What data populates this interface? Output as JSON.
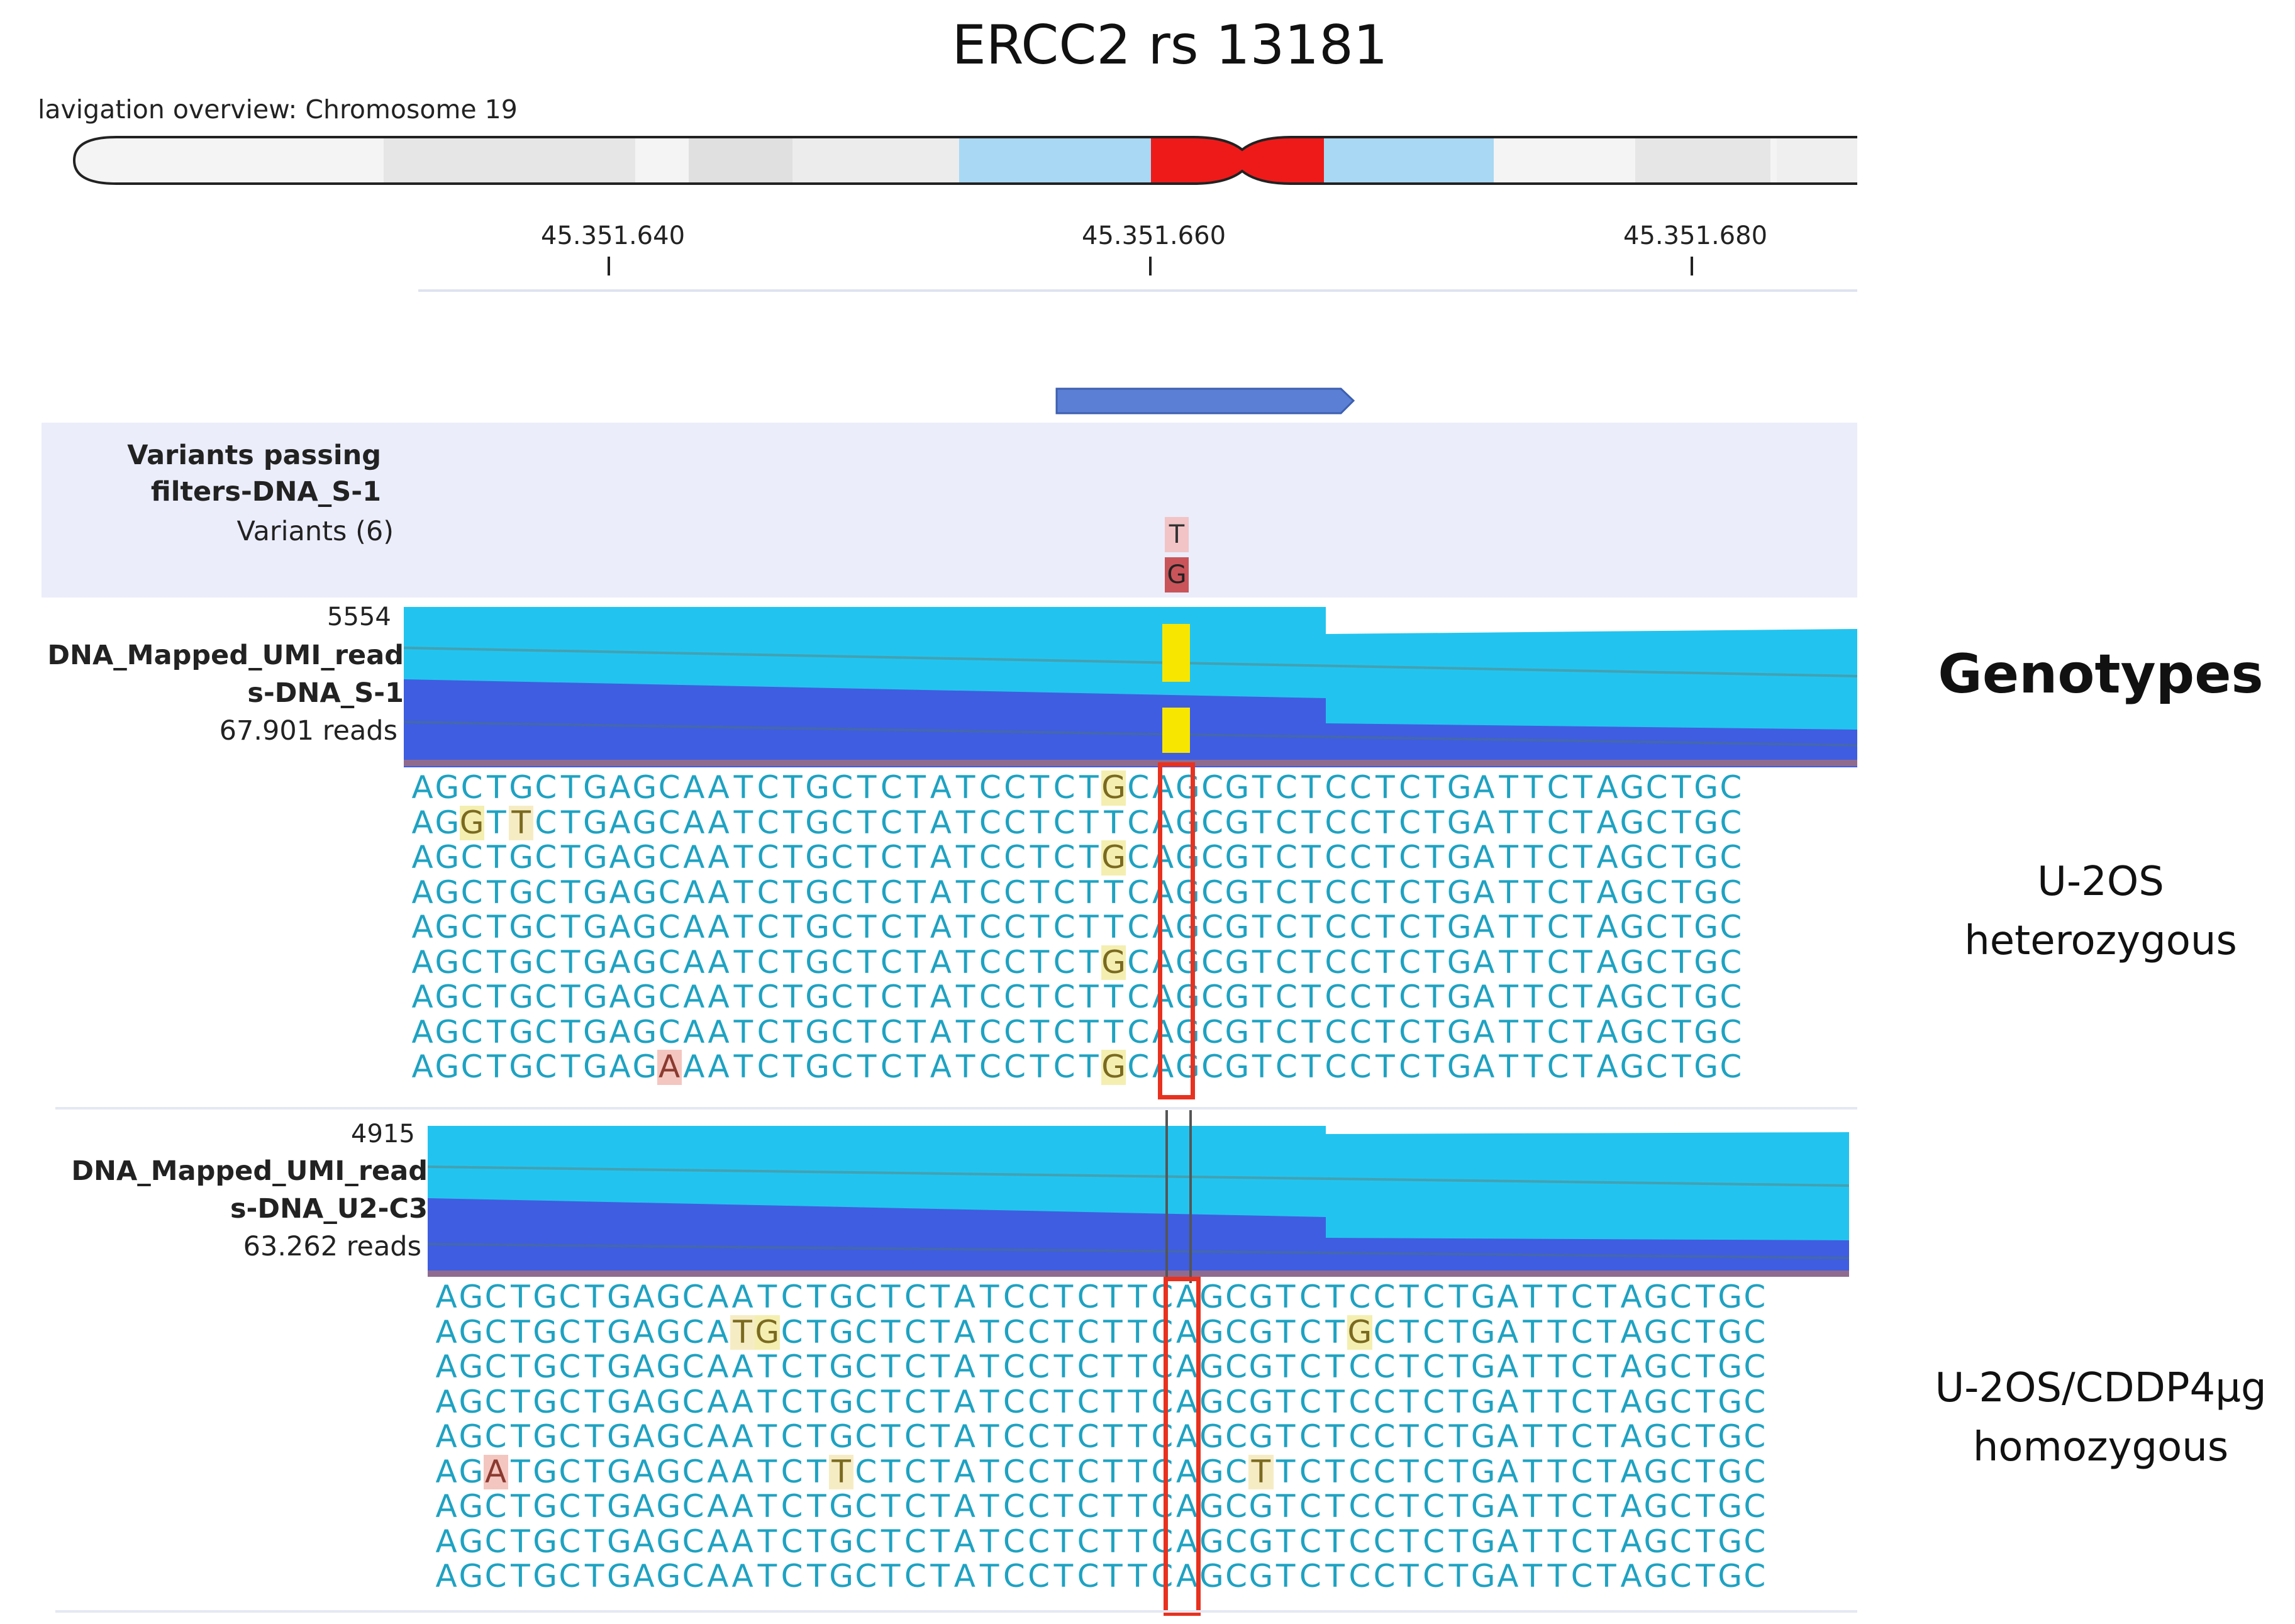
{
  "title": "ERCC2 rs 13181",
  "navigation": {
    "label": "lavigation overview: Chromosome 19"
  },
  "ruler": {
    "ticks": [
      "45.351.640",
      "45.351.660",
      "45.351.680"
    ]
  },
  "variant_track": {
    "line1": "Variants passing",
    "line2": "filters-DNA_S-1",
    "line3": "Variants (6)",
    "alleles": [
      "T",
      "G"
    ]
  },
  "track1": {
    "max": "5554",
    "name1": "DNA_Mapped_UMI_read",
    "name2": "s-DNA_S-1",
    "reads": "67.901 reads",
    "rows": [
      "AGCTGCTGAGCAATCTGCTCTATCCTCTGCAGCGTCTCCTCTGATTCTAGCTGC",
      "AGGTTCTGAGCAATCTGCTCTATCCTCTTCAGCGTCTCCTCTGATTCTAGCTGC",
      "AGCTGCTGAGCAATCTGCTCTATCCTCTGCAGCGTCTCCTCTGATTCTAGCTGC",
      "AGCTGCTGAGCAATCTGCTCTATCCTCTTCAGCGTCTCCTCTGATTCTAGCTGC",
      "AGCTGCTGAGCAATCTGCTCTATCCTCTTCAGCGTCTCCTCTGATTCTAGCTGC",
      "AGCTGCTGAGCAATCTGCTCTATCCTCTGCAGCGTCTCCTCTGATTCTAGCTGC",
      "AGCTGCTGAGCAATCTGCTCTATCCTCTTCAGCGTCTCCTCTGATTCTAGCTGC",
      "AGCTGCTGAGCAATCTGCTCTATCCTCTTCAGCGTCTCCTCTGATTCTAGCTGC",
      "AGCTGCTGAGAAATCTGCTCTATCCTCTGCAGCGTCTCCTCTGATTCTAGCTGC"
    ]
  },
  "track2": {
    "max": "4915",
    "name1": "DNA_Mapped_UMI_read",
    "name2": "s-DNA_U2-C3",
    "reads": "63.262 reads",
    "rows": [
      "AGCTGCTGAGCAATCTGCTCTATCCTCTTCAGCGTCTCCTCTGATTCTAGCTGC",
      "AGCTGCTGAGCATGCTGCTCTATCCTCTTCAGCGTCTGCTCTGATTCTAGCTGC",
      "AGCTGCTGAGCAATCTGCTCTATCCTCTTCAGCGTCTCCTCTGATTCTAGCTGC",
      "AGCTGCTGAGCAATCTGCTCTATCCTCTTCAGCGTCTCCTCTGATTCTAGCTGC",
      "AGCTGCTGAGCAATCTGCTCTATCCTCTTCAGCGTCTCCTCTGATTCTAGCTGC",
      "AGATGCTGAGCAATCTTCTCTATCCTCTTCAGCTTCTCCTCTGATTCTAGCTGC",
      "AGCTGCTGAGCAATCTGCTCTATCCTCTTCAGCGTCTCCTCTGATTCTAGCTGC",
      "AGCTGCTGAGCAATCTGCTCTATCCTCTTCAGCGTCTCCTCTGATTCTAGCTGC",
      "AGCTGCTGAGCAATCTGCTCTATCCTCTTCAGCGTCTCCTCTGATTCTAGCTGC"
    ]
  },
  "genotypes": {
    "heading": "Genotypes",
    "group1_line1": "U-2OS",
    "group1_line2": "heterozygous",
    "group2_line1": "U-2OS/CDDP4µg",
    "group2_line2": "homozygous"
  },
  "colors": {
    "highlight": "#e8311f",
    "coverage_light": "#22c4ef",
    "coverage_dark": "#3f5de0",
    "variant_yellow": "#f7e600",
    "band_red": "#ee1a1a",
    "band_blue": "#a8d8f4"
  }
}
